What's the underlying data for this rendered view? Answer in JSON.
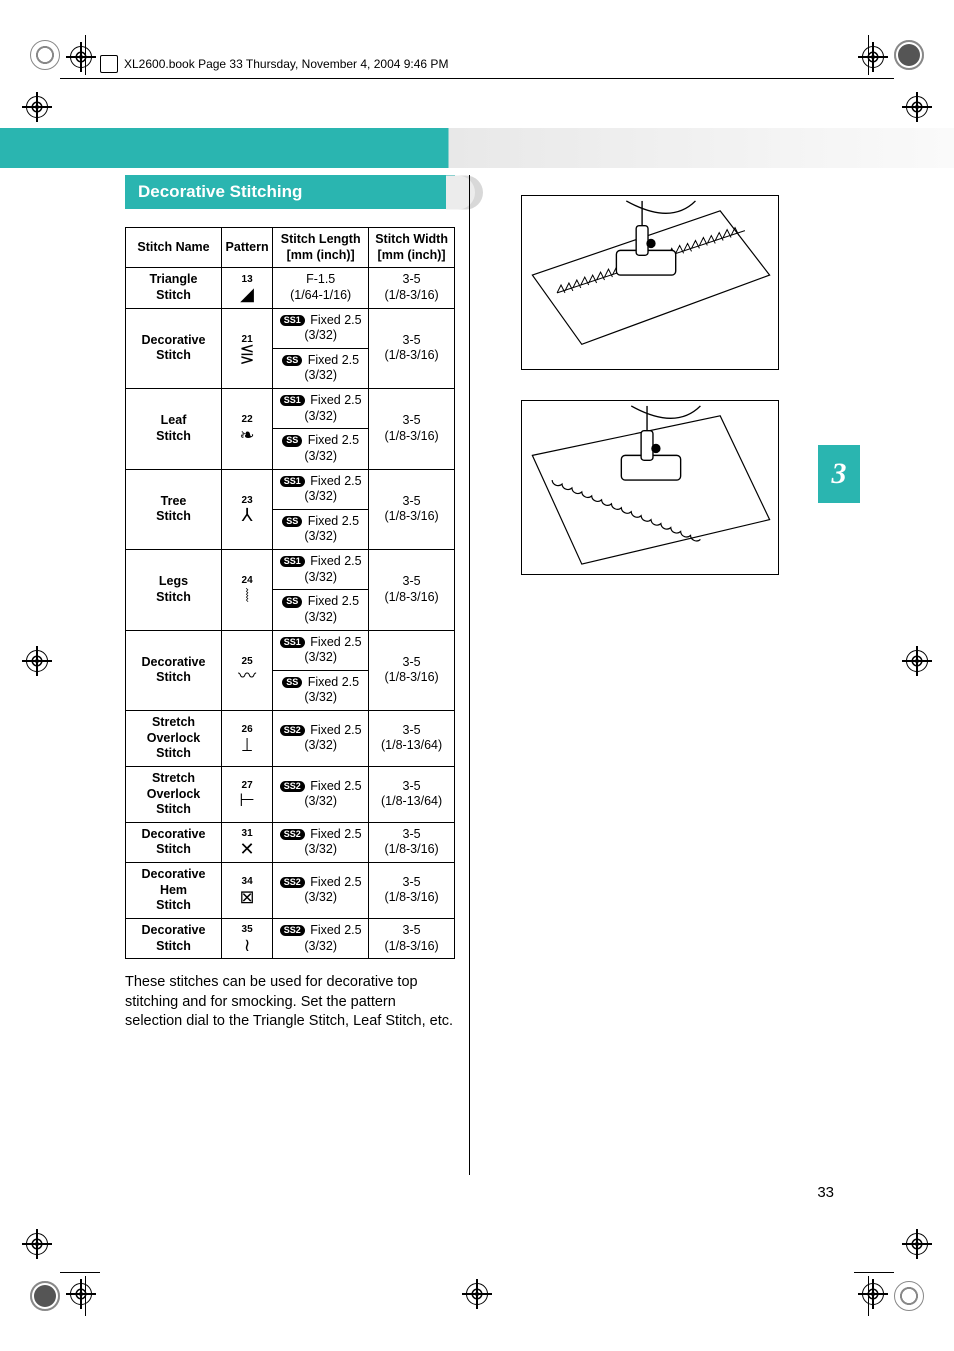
{
  "header": {
    "text": "XL2600.book  Page 33  Thursday, November 4, 2004  9:46 PM"
  },
  "section": {
    "title": "Decorative Stitching"
  },
  "table": {
    "headers": {
      "name": "Stitch Name",
      "pattern": "Pattern",
      "length": "Stitch Length [mm (inch)]",
      "width": "Stitch Width [mm (inch)]"
    },
    "rows": [
      {
        "name": "Triangle Stitch",
        "patNum": "13",
        "length": [
          {
            "badge": null,
            "val": "F-1.5 (1/64-1/16)"
          }
        ],
        "width": "3-5 (1/8-3/16)"
      },
      {
        "name": "Decorative Stitch",
        "patNum": "21",
        "length": [
          {
            "badge": "SS1",
            "val": "Fixed 2.5 (3/32)"
          },
          {
            "badge": "SS",
            "val": "Fixed 2.5 (3/32)"
          }
        ],
        "width": "3-5 (1/8-3/16)"
      },
      {
        "name": "Leaf Stitch",
        "patNum": "22",
        "length": [
          {
            "badge": "SS1",
            "val": "Fixed 2.5 (3/32)"
          },
          {
            "badge": "SS",
            "val": "Fixed 2.5 (3/32)"
          }
        ],
        "width": "3-5 (1/8-3/16)"
      },
      {
        "name": "Tree Stitch",
        "patNum": "23",
        "length": [
          {
            "badge": "SS1",
            "val": "Fixed 2.5 (3/32)"
          },
          {
            "badge": "SS",
            "val": "Fixed 2.5 (3/32)"
          }
        ],
        "width": "3-5 (1/8-3/16)"
      },
      {
        "name": "Legs Stitch",
        "patNum": "24",
        "length": [
          {
            "badge": "SS1",
            "val": "Fixed 2.5 (3/32)"
          },
          {
            "badge": "SS",
            "val": "Fixed 2.5 (3/32)"
          }
        ],
        "width": "3-5 (1/8-3/16)"
      },
      {
        "name": "Decorative Stitch",
        "patNum": "25",
        "length": [
          {
            "badge": "SS1",
            "val": "Fixed 2.5 (3/32)"
          },
          {
            "badge": "SS",
            "val": "Fixed 2.5 (3/32)"
          }
        ],
        "width": "3-5 (1/8-3/16)"
      },
      {
        "name": "Stretch Overlock Stitch",
        "patNum": "26",
        "length": [
          {
            "badge": "SS2",
            "val": "Fixed 2.5 (3/32)"
          }
        ],
        "width": "3-5 (1/8-13/64)"
      },
      {
        "name": "Stretch Overlock Stitch",
        "patNum": "27",
        "length": [
          {
            "badge": "SS2",
            "val": "Fixed 2.5 (3/32)"
          }
        ],
        "width": "3-5 (1/8-13/64)"
      },
      {
        "name": "Decorative Stitch",
        "patNum": "31",
        "length": [
          {
            "badge": "SS2",
            "val": "Fixed 2.5 (3/32)"
          }
        ],
        "width": "3-5 (1/8-3/16)"
      },
      {
        "name": "Decorative Hem Stitch",
        "patNum": "34",
        "length": [
          {
            "badge": "SS2",
            "val": "Fixed 2.5 (3/32)"
          }
        ],
        "width": "3-5 (1/8-3/16)"
      },
      {
        "name": "Decorative Stitch",
        "patNum": "35",
        "length": [
          {
            "badge": "SS2",
            "val": "Fixed 2.5 (3/32)"
          }
        ],
        "width": "3-5 (1/8-3/16)"
      }
    ]
  },
  "note": "These stitches can be used for decorative top stitching and for smocking. Set the pattern selection dial to the Triangle Stitch, Leaf Stitch, etc.",
  "chapterNum": "3",
  "pageNum": "33",
  "colors": {
    "accent": "#2ab5b0"
  }
}
